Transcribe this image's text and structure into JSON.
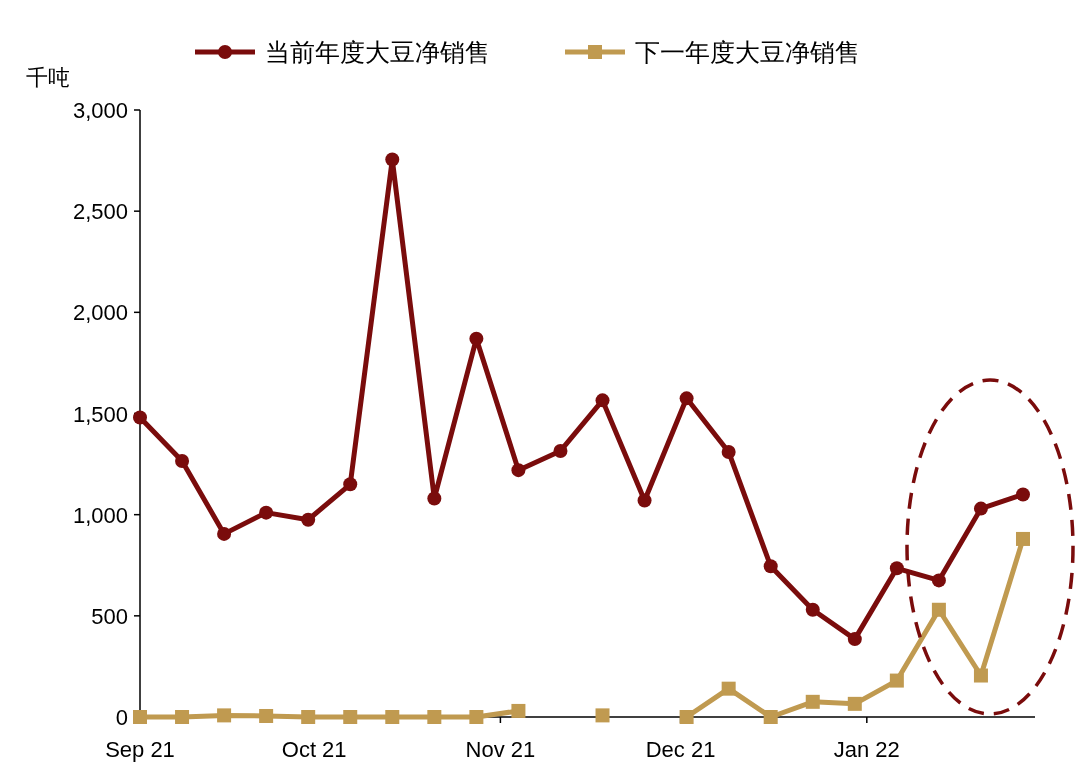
{
  "chart_data": {
    "type": "line",
    "ylabel": "千吨",
    "x": [
      "2021-09-02",
      "2021-09-09",
      "2021-09-16",
      "2021-09-23",
      "2021-09-30",
      "2021-10-07",
      "2021-10-14",
      "2021-10-21",
      "2021-10-28",
      "2021-11-04",
      "2021-11-11",
      "2021-11-18",
      "2021-11-25",
      "2021-12-02",
      "2021-12-09",
      "2021-12-16",
      "2021-12-23",
      "2021-12-30",
      "2022-01-06",
      "2022-01-13",
      "2022-01-20",
      "2022-01-27"
    ],
    "series": [
      {
        "name": "当前年度大豆净销售",
        "color": "#7a0c0c",
        "marker": "circle",
        "values": [
          1480,
          1265,
          905,
          1010,
          975,
          1150,
          2755,
          1080,
          1870,
          1220,
          1315,
          1565,
          1070,
          1575,
          1310,
          745,
          530,
          385,
          735,
          675,
          1030,
          1100
        ]
      },
      {
        "name": "下一年度大豆净销售",
        "color": "#c09a50",
        "marker": "square",
        "values": [
          0,
          0,
          8,
          5,
          0,
          0,
          0,
          0,
          0,
          30,
          null,
          8,
          null,
          0,
          140,
          0,
          75,
          65,
          180,
          530,
          205,
          880
        ]
      }
    ],
    "xlim": [
      "2021-09-02",
      "2022-01-29"
    ],
    "xticks": [
      {
        "value": "2021-09-02",
        "label": "Sep 21"
      },
      {
        "value": "2021-10-01",
        "label": "Oct 21"
      },
      {
        "value": "2021-11-01",
        "label": "Nov 21"
      },
      {
        "value": "2021-12-01",
        "label": "Dec 21"
      },
      {
        "value": "2022-01-01",
        "label": "Jan 22"
      }
    ],
    "ylim": [
      0,
      3000
    ],
    "yticks": [
      {
        "value": 0,
        "label": "0"
      },
      {
        "value": 500,
        "label": "500"
      },
      {
        "value": 1000,
        "label": "1,000"
      },
      {
        "value": 1500,
        "label": "1,500"
      },
      {
        "value": 2000,
        "label": "2,000"
      },
      {
        "value": 2500,
        "label": "2,500"
      },
      {
        "value": 3000,
        "label": "3,000"
      }
    ],
    "grid": false,
    "legend": "top",
    "line_style": "solid"
  }
}
